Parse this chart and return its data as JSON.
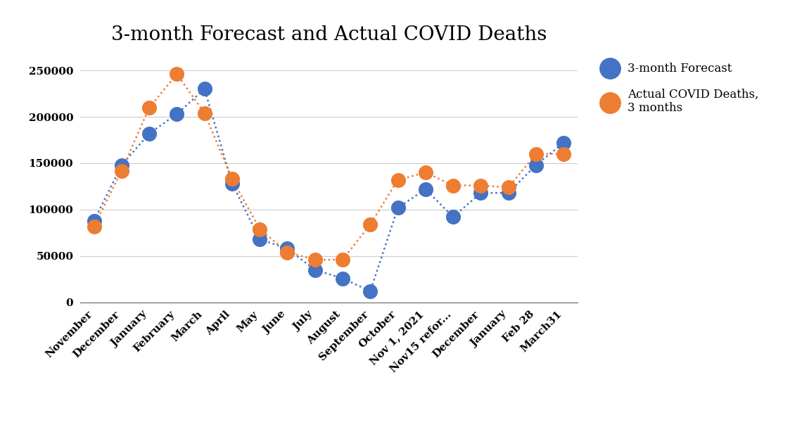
{
  "title": "3-month Forecast and Actual COVID Deaths",
  "categories": [
    "November",
    "December",
    "January",
    "February",
    "March",
    "April",
    "May",
    "June",
    "July",
    "August",
    "September",
    "October",
    "Nov 1, 2021",
    "Nov15 refor...",
    "December",
    "January",
    "Feb 28",
    "March31"
  ],
  "forecast": [
    88000,
    148000,
    182000,
    203000,
    230000,
    128000,
    68000,
    58000,
    35000,
    26000,
    12000,
    102000,
    122000,
    92000,
    118000,
    118000,
    148000,
    172000
  ],
  "actual": [
    82000,
    142000,
    210000,
    246000,
    204000,
    133000,
    79000,
    54000,
    46000,
    46000,
    84000,
    132000,
    140000,
    126000,
    126000,
    124000,
    160000,
    160000
  ],
  "forecast_color": "#4472C4",
  "actual_color": "#ED7D31",
  "forecast_label": "3-month Forecast",
  "actual_label": "Actual COVID Deaths,\n3 months",
  "ylim": [
    0,
    270000
  ],
  "yticks": [
    0,
    50000,
    100000,
    150000,
    200000,
    250000
  ],
  "background_color": "#ffffff",
  "title_fontsize": 20,
  "marker_size": 200,
  "linewidth": 1.8,
  "dot_size": 3.5
}
